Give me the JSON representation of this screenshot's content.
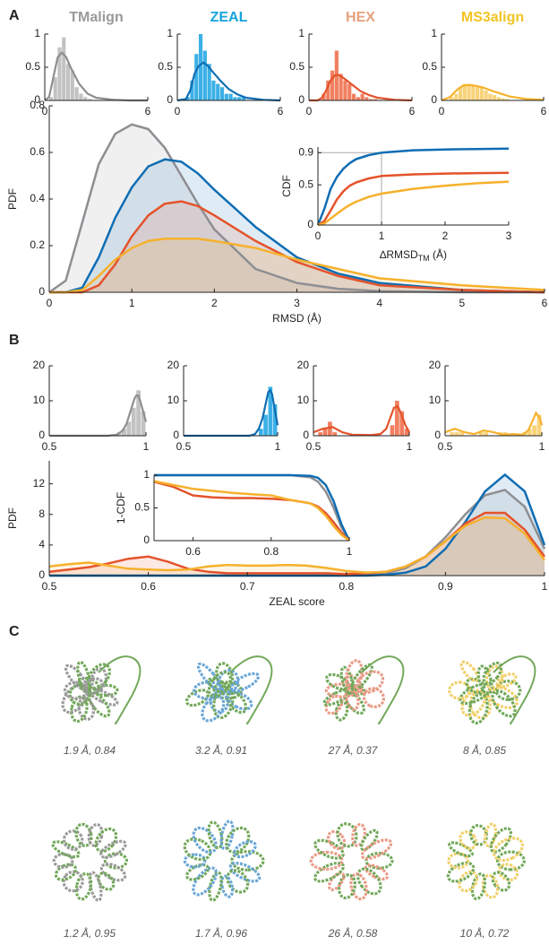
{
  "panel_labels": [
    "A",
    "B",
    "C"
  ],
  "chart_data": [
    {
      "type": "histogram",
      "title": "TMalign",
      "title_color": "#9a9a9a",
      "color": "#c2c2c2",
      "line_color": "#8e8e93",
      "bins": [
        0,
        0.25,
        0.5,
        0.75,
        1,
        1.25,
        1.5,
        1.75,
        2,
        2.25,
        2.5,
        2.75,
        3
      ],
      "values": [
        0,
        0.05,
        0.35,
        0.8,
        0.95,
        0.55,
        0.45,
        0.2,
        0.1,
        0.05,
        0.02,
        0
      ],
      "fit_x": [
        0,
        0.25,
        0.5,
        0.75,
        1,
        1.25,
        1.5,
        2,
        2.5,
        3,
        4,
        5,
        6
      ],
      "fit_values": [
        0,
        0.05,
        0.35,
        0.65,
        0.72,
        0.65,
        0.5,
        0.25,
        0.1,
        0.04,
        0.01,
        0,
        0
      ],
      "xlim": [
        0,
        6
      ],
      "xticks": [
        0,
        6
      ],
      "ylim": [
        0,
        1
      ],
      "yticks": [
        0,
        0.5,
        1
      ]
    },
    {
      "type": "histogram",
      "title": "ZEAL",
      "title_color": "#16a3dc",
      "color": "#3cb0e6",
      "line_color": "#0f6db3",
      "bins": [
        0,
        0.25,
        0.5,
        0.75,
        1,
        1.25,
        1.5,
        1.75,
        2,
        2.25,
        2.5,
        2.75,
        3,
        3.25,
        3.5,
        3.75,
        4
      ],
      "values": [
        0,
        0,
        0.05,
        0.3,
        0.7,
        1,
        0.75,
        0.55,
        0.3,
        0.25,
        0.2,
        0.1,
        0.1,
        0.05,
        0.05,
        0.05
      ],
      "fit_x": [
        0,
        0.5,
        0.75,
        1,
        1.25,
        1.5,
        1.75,
        2,
        2.5,
        3,
        3.5,
        4,
        5,
        6
      ],
      "fit_values": [
        0,
        0.02,
        0.15,
        0.4,
        0.52,
        0.57,
        0.53,
        0.45,
        0.3,
        0.17,
        0.09,
        0.04,
        0.01,
        0
      ],
      "xlim": [
        0,
        6
      ],
      "xticks": [
        0,
        6
      ],
      "ylim": [
        0,
        1
      ],
      "yticks": [
        0,
        0.5,
        1
      ]
    },
    {
      "type": "histogram",
      "title": "HEX",
      "title_color": "#e6a07e",
      "color": "#f08060",
      "line_color": "#e4532b",
      "bins": [
        0,
        0.25,
        0.5,
        0.75,
        1,
        1.25,
        1.5,
        1.75,
        2,
        2.25,
        2.5,
        2.75,
        3,
        3.25,
        3.5,
        3.75,
        4
      ],
      "values": [
        0,
        0,
        0,
        0.1,
        0.3,
        0.45,
        0.75,
        0.4,
        0.3,
        0.25,
        0.1,
        0.05,
        0.1,
        0.05,
        0.02,
        0.02
      ],
      "fit_x": [
        0,
        0.5,
        0.75,
        1,
        1.25,
        1.5,
        1.75,
        2,
        2.5,
        3,
        3.5,
        4,
        5,
        6
      ],
      "fit_values": [
        0,
        0,
        0.04,
        0.15,
        0.3,
        0.38,
        0.38,
        0.34,
        0.24,
        0.14,
        0.08,
        0.04,
        0.01,
        0
      ],
      "xlim": [
        0,
        6
      ],
      "xticks": [
        0,
        6
      ],
      "ylim": [
        0,
        1
      ],
      "yticks": [
        0,
        0.5,
        1
      ]
    },
    {
      "type": "histogram",
      "title": "MS3align",
      "title_color": "#f2c423",
      "color": "#f8d37a",
      "line_color": "#f6b12c",
      "bins": [
        0,
        0.25,
        0.5,
        0.75,
        1,
        1.25,
        1.5,
        1.75,
        2,
        2.25,
        2.5,
        2.75,
        3,
        3.25,
        3.5,
        3.75,
        4
      ],
      "values": [
        0,
        0,
        0.05,
        0.1,
        0.2,
        0.25,
        0.25,
        0.22,
        0.2,
        0.2,
        0.15,
        0.1,
        0.08,
        0.05,
        0.03,
        0.02
      ],
      "fit_x": [
        0,
        0.5,
        0.75,
        1,
        1.25,
        1.5,
        1.75,
        2,
        2.5,
        3,
        3.5,
        4,
        5,
        6
      ],
      "fit_values": [
        0,
        0.05,
        0.12,
        0.18,
        0.22,
        0.23,
        0.23,
        0.22,
        0.19,
        0.14,
        0.1,
        0.06,
        0.02,
        0.01
      ],
      "xlim": [
        0,
        6
      ],
      "xticks": [
        0,
        6
      ],
      "ylim": [
        0,
        1
      ],
      "yticks": [
        0,
        0.5,
        1
      ]
    },
    {
      "type": "histogram",
      "color": "#c2c2c2",
      "line_color": "#8e8e93",
      "bins": [
        0.85,
        0.875,
        0.9,
        0.925,
        0.95,
        0.975,
        1
      ],
      "values": [
        1,
        2,
        4,
        8,
        13,
        7
      ],
      "fit_x": [
        0.5,
        0.8,
        0.85,
        0.88,
        0.9,
        0.92,
        0.94,
        0.95,
        0.96,
        0.97,
        0.98,
        1
      ],
      "fit_values": [
        0,
        0,
        0.3,
        1.5,
        3.5,
        7,
        10.5,
        11.5,
        11.5,
        10,
        8,
        4
      ],
      "xlim": [
        0.5,
        1
      ],
      "xticks": [
        0.5,
        1
      ],
      "ylim": [
        0,
        20
      ],
      "yticks": [
        0,
        10,
        20
      ]
    },
    {
      "type": "histogram",
      "color": "#3cb0e6",
      "line_color": "#0f6db3",
      "bins": [
        0.9,
        0.925,
        0.95,
        0.975,
        1
      ],
      "values": [
        2,
        6,
        14,
        9
      ],
      "fit_x": [
        0.5,
        0.85,
        0.88,
        0.9,
        0.92,
        0.94,
        0.95,
        0.96,
        0.97,
        0.98,
        1
      ],
      "fit_values": [
        0,
        0,
        0.5,
        2,
        5,
        10,
        12.5,
        13,
        12,
        9,
        3
      ],
      "xlim": [
        0.5,
        1
      ],
      "xticks": [
        0.5,
        1
      ],
      "ylim": [
        0,
        20
      ],
      "yticks": [
        0,
        10,
        20
      ]
    },
    {
      "type": "histogram",
      "color": "#f08060",
      "line_color": "#e4532b",
      "bins": [
        0.5,
        0.525,
        0.55,
        0.575,
        0.6,
        0.625,
        0.65,
        0.675,
        0.7,
        0.725,
        0.75,
        0.775,
        0.8,
        0.825,
        0.85,
        0.875,
        0.9,
        0.925,
        0.95,
        0.975,
        1
      ],
      "values": [
        0,
        1,
        2,
        4,
        1,
        0,
        0,
        0,
        0,
        0,
        0,
        0,
        0,
        0,
        0,
        0,
        3,
        10,
        7,
        2
      ],
      "fit_x": [
        0.5,
        0.55,
        0.6,
        0.65,
        0.7,
        0.8,
        0.85,
        0.88,
        0.9,
        0.92,
        0.94,
        0.96,
        0.98,
        1
      ],
      "fit_values": [
        1,
        2,
        2.5,
        1,
        0.3,
        0.2,
        0.5,
        2,
        5,
        8,
        8.5,
        6,
        3,
        1
      ],
      "xlim": [
        0.5,
        1
      ],
      "xticks": [
        0.5,
        1
      ],
      "ylim": [
        0,
        20
      ],
      "yticks": [
        0,
        10,
        20
      ]
    },
    {
      "type": "histogram",
      "color": "#f8d37a",
      "line_color": "#f6b12c",
      "bins": [
        0.5,
        0.525,
        0.55,
        0.575,
        0.6,
        0.625,
        0.65,
        0.675,
        0.7,
        0.725,
        0.75,
        0.775,
        0.8,
        0.825,
        0.85,
        0.875,
        0.9,
        0.925,
        0.95,
        0.975,
        1
      ],
      "values": [
        0,
        1,
        1,
        1,
        0,
        0,
        0,
        1,
        1,
        0,
        0,
        1,
        1,
        0,
        0,
        0,
        1,
        2,
        3,
        6
      ],
      "fit_x": [
        0.5,
        0.55,
        0.6,
        0.65,
        0.7,
        0.75,
        0.8,
        0.85,
        0.9,
        0.93,
        0.95,
        0.97,
        0.99,
        1
      ],
      "fit_values": [
        1,
        2,
        1,
        0.5,
        1.5,
        1,
        0.3,
        0.5,
        0.3,
        1.5,
        4,
        6.5,
        5,
        3
      ],
      "xlim": [
        0.5,
        1
      ],
      "xticks": [
        0.5,
        1
      ],
      "ylim": [
        0,
        20
      ],
      "yticks": [
        0,
        10,
        20
      ]
    },
    {
      "type": "line",
      "xlabel": "RMSD (Å)",
      "ylabel": "PDF",
      "fill": true,
      "x": [
        0,
        0.2,
        0.4,
        0.6,
        0.8,
        1,
        1.2,
        1.4,
        1.6,
        1.8,
        2,
        2.5,
        3,
        3.5,
        4,
        5,
        6
      ],
      "series": [
        {
          "color": "#8e8e93",
          "values": [
            0,
            0.05,
            0.3,
            0.55,
            0.68,
            0.72,
            0.7,
            0.62,
            0.5,
            0.38,
            0.27,
            0.1,
            0.04,
            0.015,
            0.005,
            0,
            0
          ]
        },
        {
          "color": "#0f6db3",
          "values": [
            0,
            0,
            0.02,
            0.15,
            0.32,
            0.45,
            0.54,
            0.57,
            0.56,
            0.51,
            0.44,
            0.28,
            0.15,
            0.08,
            0.04,
            0.01,
            0
          ]
        },
        {
          "color": "#e4532b",
          "values": [
            0,
            0,
            0,
            0.03,
            0.12,
            0.24,
            0.33,
            0.38,
            0.39,
            0.37,
            0.33,
            0.22,
            0.13,
            0.07,
            0.03,
            0.01,
            0
          ]
        },
        {
          "color": "#f6b12c",
          "values": [
            0,
            0,
            0.01,
            0.07,
            0.14,
            0.19,
            0.22,
            0.23,
            0.23,
            0.23,
            0.22,
            0.19,
            0.14,
            0.1,
            0.06,
            0.03,
            0.01
          ]
        }
      ],
      "xlim": [
        0,
        6
      ],
      "xticks": [
        0,
        1,
        2,
        3,
        4,
        5,
        6
      ],
      "ylim": [
        0,
        0.8
      ],
      "yticks": [
        0,
        0.2,
        0.4,
        0.6,
        0.8
      ]
    },
    {
      "type": "line",
      "xlabel": "∆RMSD",
      "xlabel_sub": "TM",
      "xlabel_unit": "(Å)",
      "ylabel": "CDF",
      "reference": {
        "x": 1,
        "y": 0.9
      },
      "x": [
        0,
        0.1,
        0.2,
        0.3,
        0.4,
        0.5,
        0.6,
        0.8,
        1,
        1.5,
        2,
        2.5,
        3
      ],
      "series": [
        {
          "color": "#0f6db3",
          "values": [
            0,
            0.2,
            0.45,
            0.6,
            0.7,
            0.77,
            0.82,
            0.87,
            0.9,
            0.93,
            0.94,
            0.945,
            0.95
          ]
        },
        {
          "color": "#e4532b",
          "values": [
            0,
            0.05,
            0.18,
            0.32,
            0.42,
            0.49,
            0.53,
            0.58,
            0.61,
            0.63,
            0.64,
            0.645,
            0.65
          ]
        },
        {
          "color": "#f6b12c",
          "values": [
            0,
            0.02,
            0.08,
            0.14,
            0.2,
            0.25,
            0.29,
            0.35,
            0.39,
            0.45,
            0.49,
            0.52,
            0.54
          ]
        }
      ],
      "xlim": [
        0,
        3
      ],
      "xticks": [
        0,
        1,
        2,
        3
      ],
      "ylim": [
        0,
        0.97
      ],
      "yticks": [
        0,
        0.5,
        0.9
      ]
    },
    {
      "type": "line",
      "xlabel": "ZEAL score",
      "ylabel": "PDF",
      "fill": true,
      "x": [
        0.5,
        0.52,
        0.54,
        0.56,
        0.58,
        0.6,
        0.62,
        0.64,
        0.66,
        0.68,
        0.7,
        0.72,
        0.74,
        0.76,
        0.78,
        0.8,
        0.82,
        0.84,
        0.86,
        0.88,
        0.9,
        0.92,
        0.94,
        0.96,
        0.98,
        1
      ],
      "series": [
        {
          "color": "#8e8e93",
          "values": [
            0,
            0,
            0,
            0,
            0,
            0,
            0,
            0,
            0,
            0,
            0,
            0,
            0,
            0,
            0,
            0,
            0.1,
            0.3,
            1,
            2.5,
            5,
            8,
            10.5,
            11.2,
            9,
            3.5
          ]
        },
        {
          "color": "#0f6db3",
          "values": [
            0,
            0,
            0,
            0,
            0,
            0,
            0,
            0,
            0,
            0,
            0,
            0,
            0,
            0,
            0,
            0,
            0,
            0.1,
            0.4,
            1.2,
            3.5,
            7,
            11,
            13.2,
            11,
            4
          ]
        },
        {
          "color": "#e4532b",
          "values": [
            0.5,
            0.8,
            1.1,
            1.6,
            2.2,
            2.5,
            1.8,
            0.9,
            0.5,
            0.3,
            0.3,
            0.3,
            0.3,
            0.3,
            0.3,
            0.2,
            0.3,
            0.5,
            1.2,
            2.5,
            4.5,
            6.8,
            8.2,
            8.2,
            6,
            2.5
          ]
        },
        {
          "color": "#f6b12c",
          "values": [
            1.2,
            1.5,
            1.7,
            1.3,
            0.9,
            0.8,
            0.7,
            0.8,
            1.2,
            1.4,
            1.3,
            1.3,
            1.4,
            1.3,
            1,
            0.6,
            0.4,
            0.5,
            1.2,
            2.5,
            4.5,
            6.5,
            7.6,
            7.5,
            5.5,
            2
          ]
        }
      ],
      "xlim": [
        0.5,
        1
      ],
      "xticks": [
        0.5,
        0.6,
        0.7,
        0.8,
        0.9,
        1
      ],
      "ylim": [
        0,
        15
      ],
      "yticks": [
        0,
        4,
        8,
        12
      ]
    },
    {
      "type": "line",
      "ylabel": "1-CDF",
      "x": [
        0.5,
        0.55,
        0.6,
        0.65,
        0.7,
        0.75,
        0.8,
        0.85,
        0.9,
        0.92,
        0.94,
        0.96,
        0.98,
        1
      ],
      "series": [
        {
          "color": "#8e8e93",
          "values": [
            1,
            1,
            1,
            1,
            1,
            1,
            1,
            1,
            0.97,
            0.9,
            0.75,
            0.5,
            0.2,
            0
          ]
        },
        {
          "color": "#0f6db3",
          "values": [
            1,
            1,
            1,
            1,
            1,
            1,
            1,
            1,
            0.99,
            0.96,
            0.85,
            0.6,
            0.25,
            0
          ]
        },
        {
          "color": "#e4532b",
          "values": [
            0.9,
            0.82,
            0.69,
            0.66,
            0.65,
            0.65,
            0.64,
            0.62,
            0.57,
            0.52,
            0.42,
            0.28,
            0.12,
            0
          ]
        },
        {
          "color": "#f6b12c",
          "values": [
            0.91,
            0.85,
            0.79,
            0.76,
            0.73,
            0.71,
            0.69,
            0.62,
            0.57,
            0.5,
            0.38,
            0.22,
            0.09,
            0
          ]
        }
      ],
      "xlim": [
        0.5,
        1
      ],
      "xticks": [
        0.6,
        0.8,
        1
      ],
      "ylim": [
        0,
        1
      ],
      "yticks": [
        0,
        0.5,
        1
      ]
    }
  ],
  "structures": [
    {
      "caption": "1.9 Å, 0.84"
    },
    {
      "caption": "3.2 Å, 0.91"
    },
    {
      "caption": "27 Å, 0.37"
    },
    {
      "caption": "8 Å, 0.85"
    },
    {
      "caption": "1.2 Å, 0.95"
    },
    {
      "caption": "1.7 Å, 0.96"
    },
    {
      "caption": "26 Å, 0.58"
    },
    {
      "caption": "10 Å, 0.72"
    }
  ]
}
